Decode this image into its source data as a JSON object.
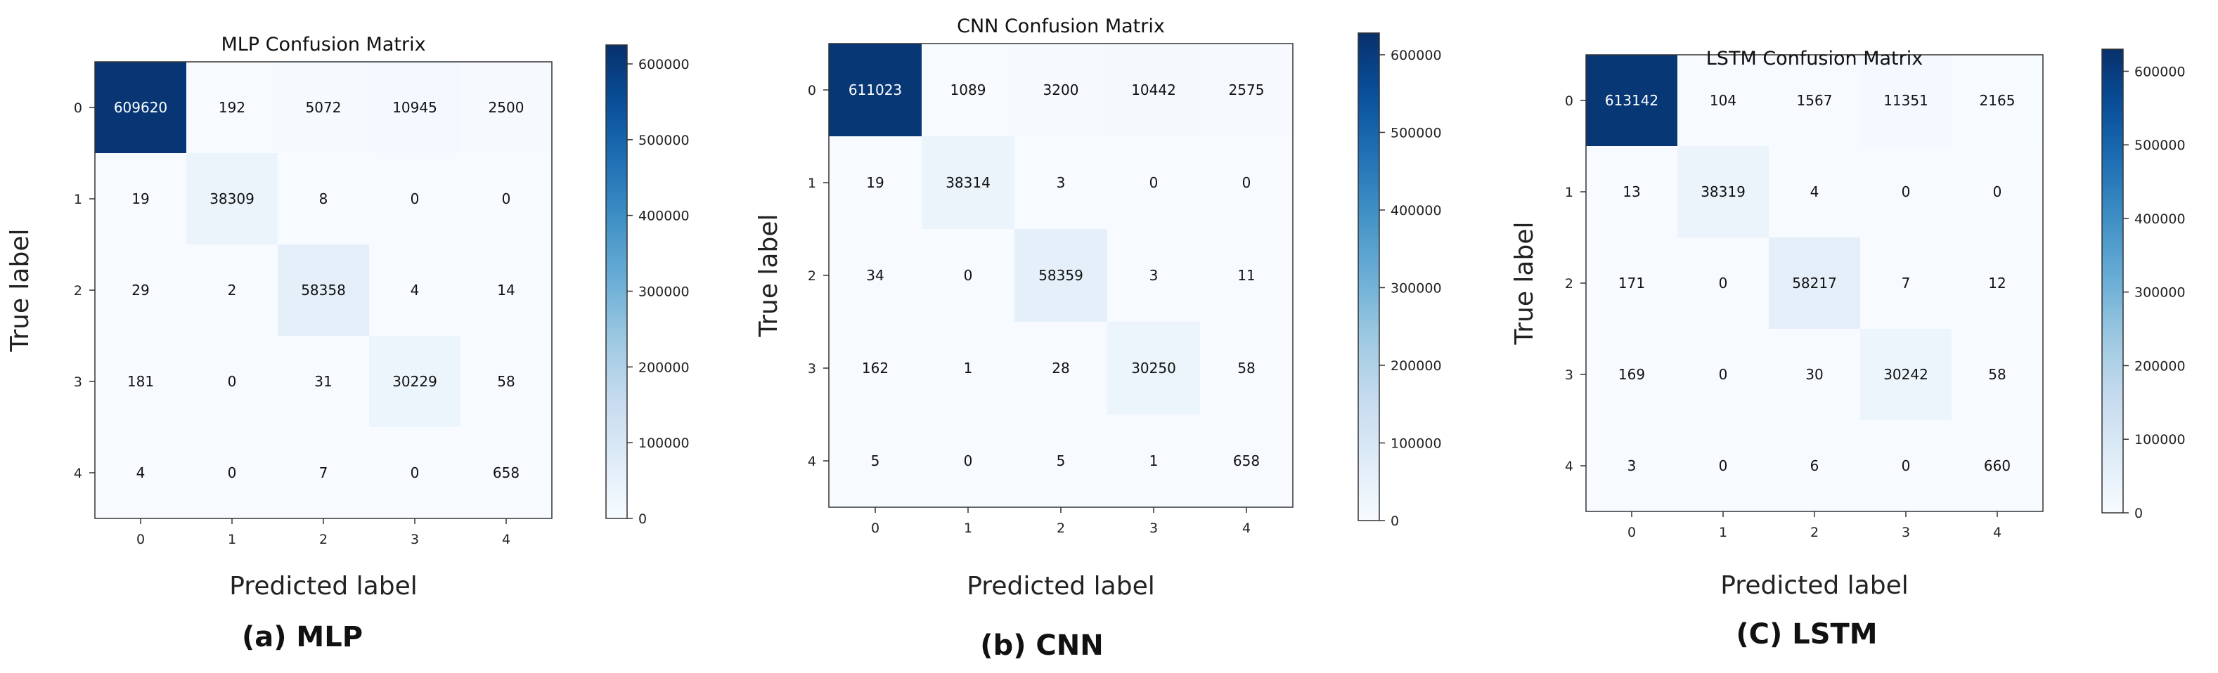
{
  "chart_data": [
    {
      "type": "heatmap",
      "title": "MLP Confusion Matrix",
      "caption": "(a) MLP",
      "xlabel": "Predicted label",
      "ylabel": "True label",
      "x_ticks": [
        "0",
        "1",
        "2",
        "3",
        "4"
      ],
      "y_ticks": [
        "0",
        "1",
        "2",
        "3",
        "4"
      ],
      "matrix": [
        [
          609620,
          192,
          5072,
          10945,
          2500
        ],
        [
          19,
          38309,
          8,
          0,
          0
        ],
        [
          29,
          2,
          58358,
          4,
          14
        ],
        [
          181,
          0,
          31,
          30229,
          58
        ],
        [
          4,
          0,
          7,
          0,
          658
        ]
      ],
      "colormap": "Blues",
      "vmin": 0,
      "vmax": 625000,
      "colorbar_ticks": [
        "0",
        "100000",
        "200000",
        "300000",
        "400000",
        "500000",
        "600000"
      ]
    },
    {
      "type": "heatmap",
      "title": "CNN Confusion Matrix",
      "caption": "(b) CNN",
      "xlabel": "Predicted label",
      "ylabel": "True label",
      "x_ticks": [
        "0",
        "1",
        "2",
        "3",
        "4"
      ],
      "y_ticks": [
        "0",
        "1",
        "2",
        "3",
        "4"
      ],
      "matrix": [
        [
          611023,
          1089,
          3200,
          10442,
          2575
        ],
        [
          19,
          38314,
          3,
          0,
          0
        ],
        [
          34,
          0,
          58359,
          3,
          11
        ],
        [
          162,
          1,
          28,
          30250,
          58
        ],
        [
          5,
          0,
          5,
          1,
          658
        ]
      ],
      "colormap": "Blues",
      "vmin": 0,
      "vmax": 628000,
      "colorbar_ticks": [
        "0",
        "100000",
        "200000",
        "300000",
        "400000",
        "500000",
        "600000"
      ]
    },
    {
      "type": "heatmap",
      "title": "LSTM Confusion Matrix",
      "caption": "(C) LSTM",
      "xlabel": "Predicted label",
      "ylabel": "True label",
      "x_ticks": [
        "0",
        "1",
        "2",
        "3",
        "4"
      ],
      "y_ticks": [
        "0",
        "1",
        "2",
        "3",
        "4"
      ],
      "matrix": [
        [
          613142,
          104,
          1567,
          11351,
          2165
        ],
        [
          13,
          38319,
          4,
          0,
          0
        ],
        [
          171,
          0,
          58217,
          7,
          12
        ],
        [
          169,
          0,
          30,
          30242,
          58
        ],
        [
          3,
          0,
          6,
          0,
          660
        ]
      ],
      "colormap": "Blues",
      "vmin": 0,
      "vmax": 630000,
      "colorbar_ticks": [
        "0",
        "100000",
        "200000",
        "300000",
        "400000",
        "500000",
        "600000"
      ]
    }
  ]
}
